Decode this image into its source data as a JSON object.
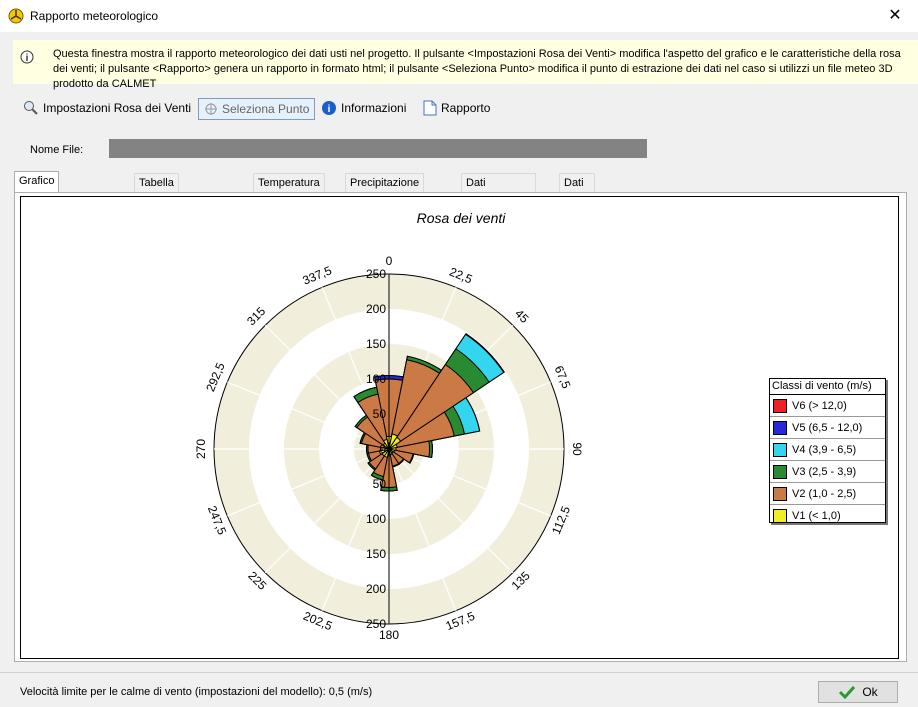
{
  "window": {
    "title": "Rapporto meteorologico"
  },
  "info": {
    "text": "Questa finestra mostra il rapporto meteorologico dei dati usti nel progetto. Il pulsante <Impostazioni Rosa dei Venti> modifica l'aspetto del grafico e le caratteristiche della rosa dei venti; il pulsante <Rapporto> genera un rapporto in formato html; il pulsante <Seleziona Punto> modifica il punto di estrazione dei dati nel caso si utilizzi un file meteo 3D prodotto da CALMET"
  },
  "toolbar": {
    "settings": "Impostazioni Rosa dei Venti",
    "select_point": "Seleziona Punto",
    "info": "Informazioni",
    "report": "Rapporto"
  },
  "file": {
    "label": "Nome File:"
  },
  "tabs": [
    "Grafico Rosa dei Venti",
    "Tabella Rosa dei Venti",
    "Temperatura (°C)",
    "Precipitazione (mm/hr)",
    "Dati Meteorologici",
    "Dati Validi (%)"
  ],
  "chart_data": {
    "type": "polar-bar",
    "title": "Rosa dei venti",
    "radial_ticks": [
      0,
      50,
      100,
      150,
      200,
      250
    ],
    "r_max": 250,
    "directions": [
      0,
      22.5,
      45,
      67.5,
      90,
      112.5,
      135,
      157.5,
      180,
      202.5,
      225,
      247.5,
      270,
      292.5,
      315,
      337.5
    ],
    "legend_title": "Classi di vento (m/s)",
    "classes": [
      {
        "name": "V6 (> 12,0)",
        "color": "#ee2222"
      },
      {
        "name": "V5 (6,5 - 12,0)",
        "color": "#2828d8"
      },
      {
        "name": "V4 (3,9 - 6,5)",
        "color": "#33d6ee"
      },
      {
        "name": "V3 (2,5 - 3,9)",
        "color": "#2a8a32"
      },
      {
        "name": "V2 (1,0 - 2,5)",
        "color": "#cc7a45"
      },
      {
        "name": "V1 (< 1,0)",
        "color": "#f0f020"
      }
    ],
    "series_cumulative": [
      {
        "name": "V1 (< 1,0)",
        "values": [
          18,
          22,
          20,
          12,
          10,
          8,
          7,
          8,
          10,
          12,
          12,
          14,
          10,
          8,
          10,
          14
        ]
      },
      {
        "name": "V2 (1,0 - 2,5)",
        "values": [
          100,
          130,
          145,
          95,
          58,
          35,
          25,
          25,
          55,
          40,
          34,
          30,
          30,
          40,
          55,
          80
        ]
      },
      {
        "name": "V3 (2,5 - 3,9)",
        "values": [
          100,
          135,
          172,
          110,
          62,
          36,
          26,
          26,
          60,
          45,
          36,
          32,
          32,
          42,
          58,
          90
        ]
      },
      {
        "name": "V4 (3,9 - 6,5)",
        "values": [
          100,
          135,
          197,
          132,
          62,
          36,
          26,
          26,
          60,
          45,
          36,
          32,
          32,
          42,
          58,
          90
        ]
      },
      {
        "name": "V5 (6,5 - 12,0)",
        "values": [
          105,
          135,
          198,
          132,
          62,
          36,
          26,
          26,
          60,
          45,
          36,
          32,
          32,
          42,
          58,
          90
        ]
      },
      {
        "name": "V6 (> 12,0)",
        "values": [
          105,
          135,
          198,
          132,
          62,
          36,
          26,
          26,
          60,
          45,
          36,
          32,
          32,
          42,
          58,
          90
        ]
      }
    ]
  },
  "status": {
    "text": "Velocità limite per le calme di vento (impostazioni del modello): 0,5 (m/s)"
  },
  "ok_button": {
    "label": "Ok"
  }
}
